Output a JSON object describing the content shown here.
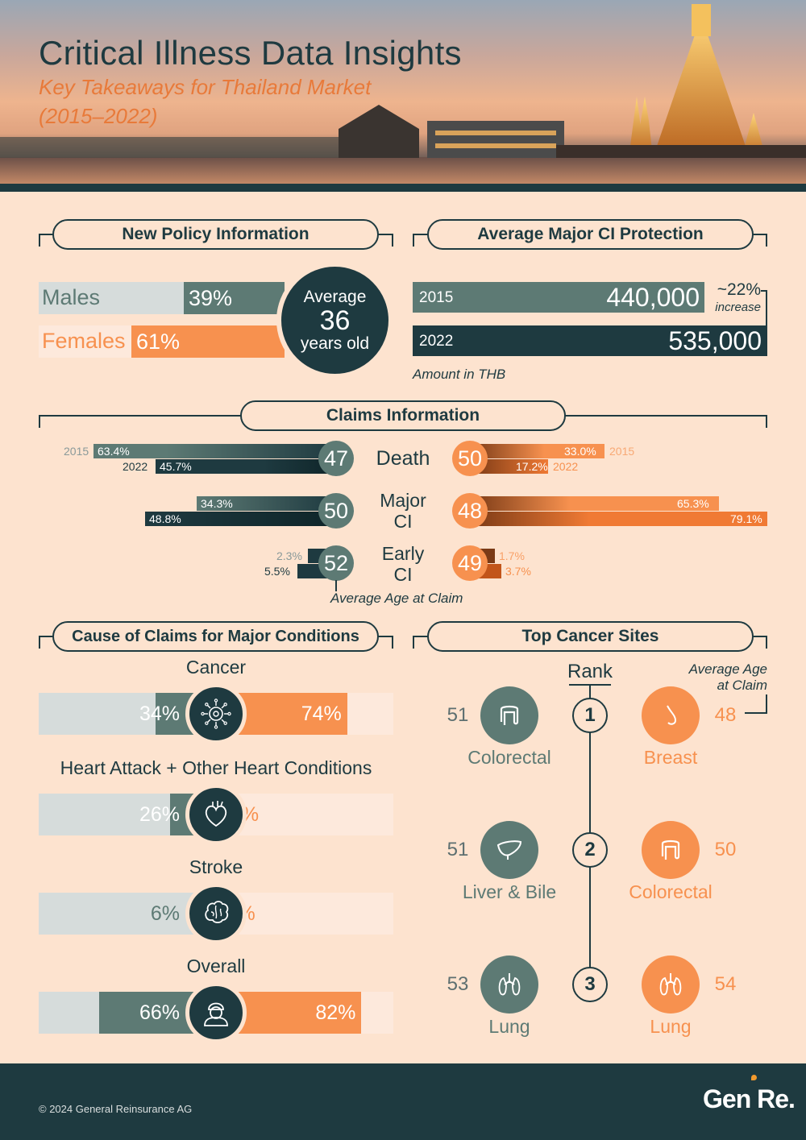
{
  "header": {
    "title": "Critical Illness Data Insights",
    "subtitle": "Key Takeaways for Thailand Market",
    "period": "(2015–2022)"
  },
  "policy": {
    "heading": "New Policy Information",
    "males_label": "Males",
    "males_pct": "39%",
    "females_label": "Females",
    "females_pct": "61%",
    "avg_label_top": "Average",
    "avg_age": "36",
    "avg_label_bottom": "years old"
  },
  "protection": {
    "heading": "Average Major CI Protection",
    "year1": "2015",
    "value1": "440,000",
    "year2": "2022",
    "value2": "535,000",
    "increase_pct": "~22%",
    "increase_label": "increase",
    "unit_note": "Amount in THB"
  },
  "claims": {
    "heading": "Claims Information",
    "footnote": "Average Age at Claim",
    "rows": [
      {
        "label1": "Death",
        "label2": "",
        "male_age": "47",
        "female_age": "50",
        "m2015": "63.4%",
        "m2022": "45.7%",
        "f2015": "33.0%",
        "f2022": "17.2%",
        "y2015": "2015",
        "y2022": "2022"
      },
      {
        "label1": "Major",
        "label2": "CI",
        "male_age": "50",
        "female_age": "48",
        "m2015": "34.3%",
        "m2022": "48.8%",
        "f2015": "65.3%",
        "f2022": "79.1%"
      },
      {
        "label1": "Early",
        "label2": "CI",
        "male_age": "52",
        "female_age": "49",
        "m2015": "2.3%",
        "m2022": "5.5%",
        "f2015": "1.7%",
        "f2022": "3.7%"
      }
    ]
  },
  "causes": {
    "heading": "Cause of Claims for Major Conditions",
    "items": [
      {
        "label": "Cancer",
        "male": "34%",
        "female": "74%",
        "male_value": 34,
        "female_value": 74,
        "icon": "virus-icon"
      },
      {
        "label": "Heart Attack + Other Heart Conditions",
        "male": "26%",
        "female": "5%",
        "male_value": 26,
        "female_value": 5,
        "icon": "heart-icon"
      },
      {
        "label": "Stroke",
        "male": "6%",
        "female": "3%",
        "male_value": 6,
        "female_value": 3,
        "icon": "brain-icon"
      },
      {
        "label": "Overall",
        "male": "66%",
        "female": "82%",
        "male_value": 66,
        "female_value": 82,
        "icon": "person-icon"
      }
    ]
  },
  "cancer_sites": {
    "heading": "Top Cancer Sites",
    "rank_label": "Rank",
    "age_label_1": "Average Age",
    "age_label_2": "at Claim",
    "ranks": [
      {
        "rank": "1",
        "male_site": "Colorectal",
        "male_age": "51",
        "female_site": "Breast",
        "female_age": "48"
      },
      {
        "rank": "2",
        "male_site": "Liver & Bile",
        "male_age": "51",
        "female_site": "Colorectal",
        "female_age": "50"
      },
      {
        "rank": "3",
        "male_site": "Lung",
        "male_age": "53",
        "female_site": "Lung",
        "female_age": "54"
      }
    ]
  },
  "footer": {
    "copyright": "© 2024 General Reinsurance AG",
    "logo": "Gen Re."
  },
  "colors": {
    "male": "#5d7a74",
    "male_dark": "#1e3a40",
    "female": "#f7914f",
    "background": "#fde3cf"
  }
}
